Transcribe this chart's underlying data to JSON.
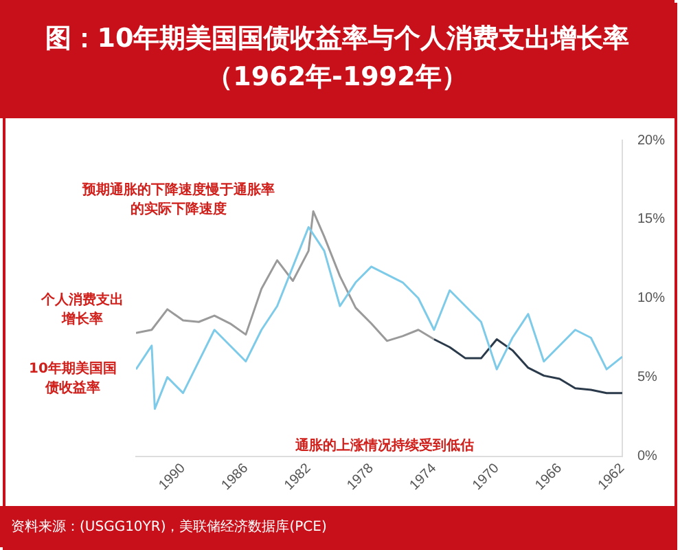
{
  "chart_data": {
    "type": "line",
    "title": "图：10年期美国国债收益率与个人消费支出增长率（1962年-1992年）",
    "annotations": [
      "预期通胀的下降速度慢于通胀率的实际下降速度",
      "个人消费支出增长率",
      "10年期美国国债收益率",
      "通胀的上涨情况持续受到低估",
      "资料来源：(USGG10YR)，美联储经济数据库(PCE)"
    ],
    "xlim": [
      1993,
      1962
    ],
    "xticks": [
      1962,
      1966,
      1970,
      1974,
      1978,
      1982,
      1986,
      1990
    ],
    "ylim": [
      0,
      20
    ],
    "yticks": [
      {
        "value": 0,
        "label": "0%"
      },
      {
        "value": 5,
        "label": "5%"
      },
      {
        "value": 10,
        "label": "10%"
      },
      {
        "value": 15,
        "label": "15%"
      },
      {
        "value": 20,
        "label": "20%"
      }
    ],
    "grid": false,
    "legend": false,
    "marker": "none",
    "series": [
      {
        "color": "#7dcbe8",
        "x": [
          1962,
          1963,
          1964,
          1965,
          1966,
          1967,
          1968,
          1969,
          1970,
          1971,
          1972,
          1973,
          1974,
          1975,
          1976,
          1977,
          1978,
          1979,
          1980,
          1981,
          1982,
          1983,
          1984,
          1985,
          1986,
          1987,
          1988,
          1989,
          1990,
          1991,
          1991.8,
          1992,
          1993
        ],
        "values": [
          6.3,
          5.5,
          7.5,
          8,
          7,
          6,
          9,
          7.5,
          5.5,
          8.5,
          9.5,
          10.5,
          8,
          10,
          11,
          11.5,
          12,
          11,
          9.5,
          13,
          14.5,
          12,
          9.5,
          8,
          6,
          7,
          8,
          6,
          4,
          5,
          3,
          7,
          5.5
        ]
      },
      {
        "color": "#2b3a4a",
        "x": [
          1962,
          1963,
          1964,
          1965,
          1966,
          1967,
          1968,
          1969,
          1970,
          1971,
          1972,
          1973,
          1974
        ],
        "values": [
          4,
          4,
          4.2,
          4.3,
          4.9,
          5.1,
          5.6,
          6.7,
          7.4,
          6.2,
          6.2,
          6.9,
          7.4
        ]
      },
      {
        "color": "#9a9a9a",
        "x": [
          1974,
          1975,
          1976,
          1977,
          1978,
          1979,
          1980,
          1981,
          1981.7,
          1982,
          1983,
          1984,
          1985,
          1986,
          1987,
          1988,
          1989,
          1990,
          1991,
          1992,
          1993
        ],
        "values": [
          7.4,
          8,
          7.6,
          7.3,
          8.4,
          9.4,
          11.4,
          13.9,
          15.5,
          13,
          11.1,
          12.4,
          10.6,
          7.7,
          8.4,
          8.9,
          8.5,
          8.6,
          9.3,
          8,
          7.8
        ]
      }
    ]
  }
}
